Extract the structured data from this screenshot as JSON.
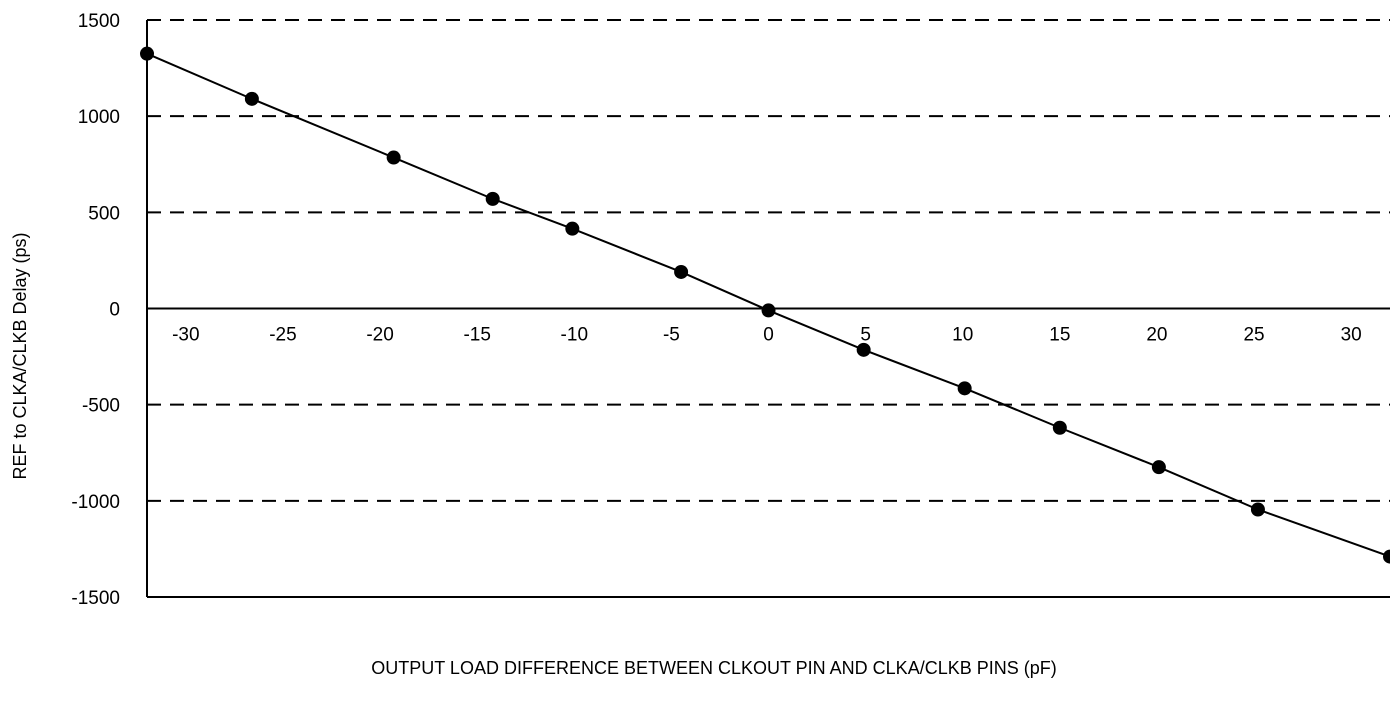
{
  "chart_data": {
    "type": "line",
    "title": "",
    "xlabel": "OUTPUT LOAD DIFFERENCE BETWEEN CLKOUT PIN AND CLKA/CLKB PINS (pF)",
    "ylabel": "REF to CLKA/CLKB Delay (ps)",
    "xlim": [
      -32,
      32
    ],
    "ylim": [
      -1500,
      1500
    ],
    "xticks": [
      -30,
      -25,
      -20,
      -15,
      -10,
      -5,
      0,
      5,
      10,
      15,
      20,
      25,
      30
    ],
    "yticks": [
      1500,
      1000,
      500,
      0,
      -500,
      -1000,
      -1500
    ],
    "x_tick_labels": [
      "-30",
      "-25",
      "-20",
      "-15",
      "-10",
      "-5",
      "0",
      "5",
      "10",
      "15",
      "20",
      "25",
      "30"
    ],
    "y_tick_labels": [
      "1500",
      "1000",
      "500",
      "0",
      "-500",
      "-1000",
      "-1500"
    ],
    "grid": "horizontal dashed",
    "series": [
      {
        "x": [
          -32,
          -26.6,
          -19.3,
          -14.2,
          -10.1,
          -4.5,
          0,
          4.9,
          10.1,
          15.0,
          20.1,
          25.2,
          32
        ],
        "y": [
          1325,
          1090,
          785,
          570,
          415,
          190,
          -10,
          -215,
          -415,
          -620,
          -825,
          -1045,
          -1290
        ],
        "color": "#000000"
      }
    ]
  }
}
